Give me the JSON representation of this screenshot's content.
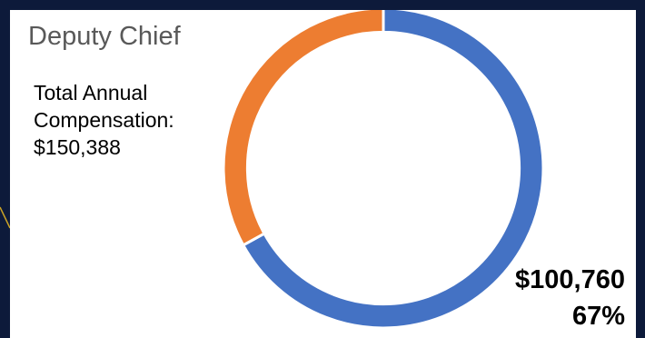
{
  "chart_data": {
    "type": "pie",
    "title": "Deputy Chief",
    "annotation": {
      "line1": "Total Annual",
      "line2": "Compensation:",
      "line3": "$150,388"
    },
    "slices": [
      {
        "value": 100760,
        "label": "$100,760",
        "percent_label": "67%",
        "color": "#4472c4"
      },
      {
        "value": 49628,
        "color": "#ed7d31"
      }
    ],
    "hole_ratio": 0.85
  },
  "colors": {
    "background": "#0d1a3a",
    "panel": "#ffffff",
    "accent": "#c9a227"
  }
}
